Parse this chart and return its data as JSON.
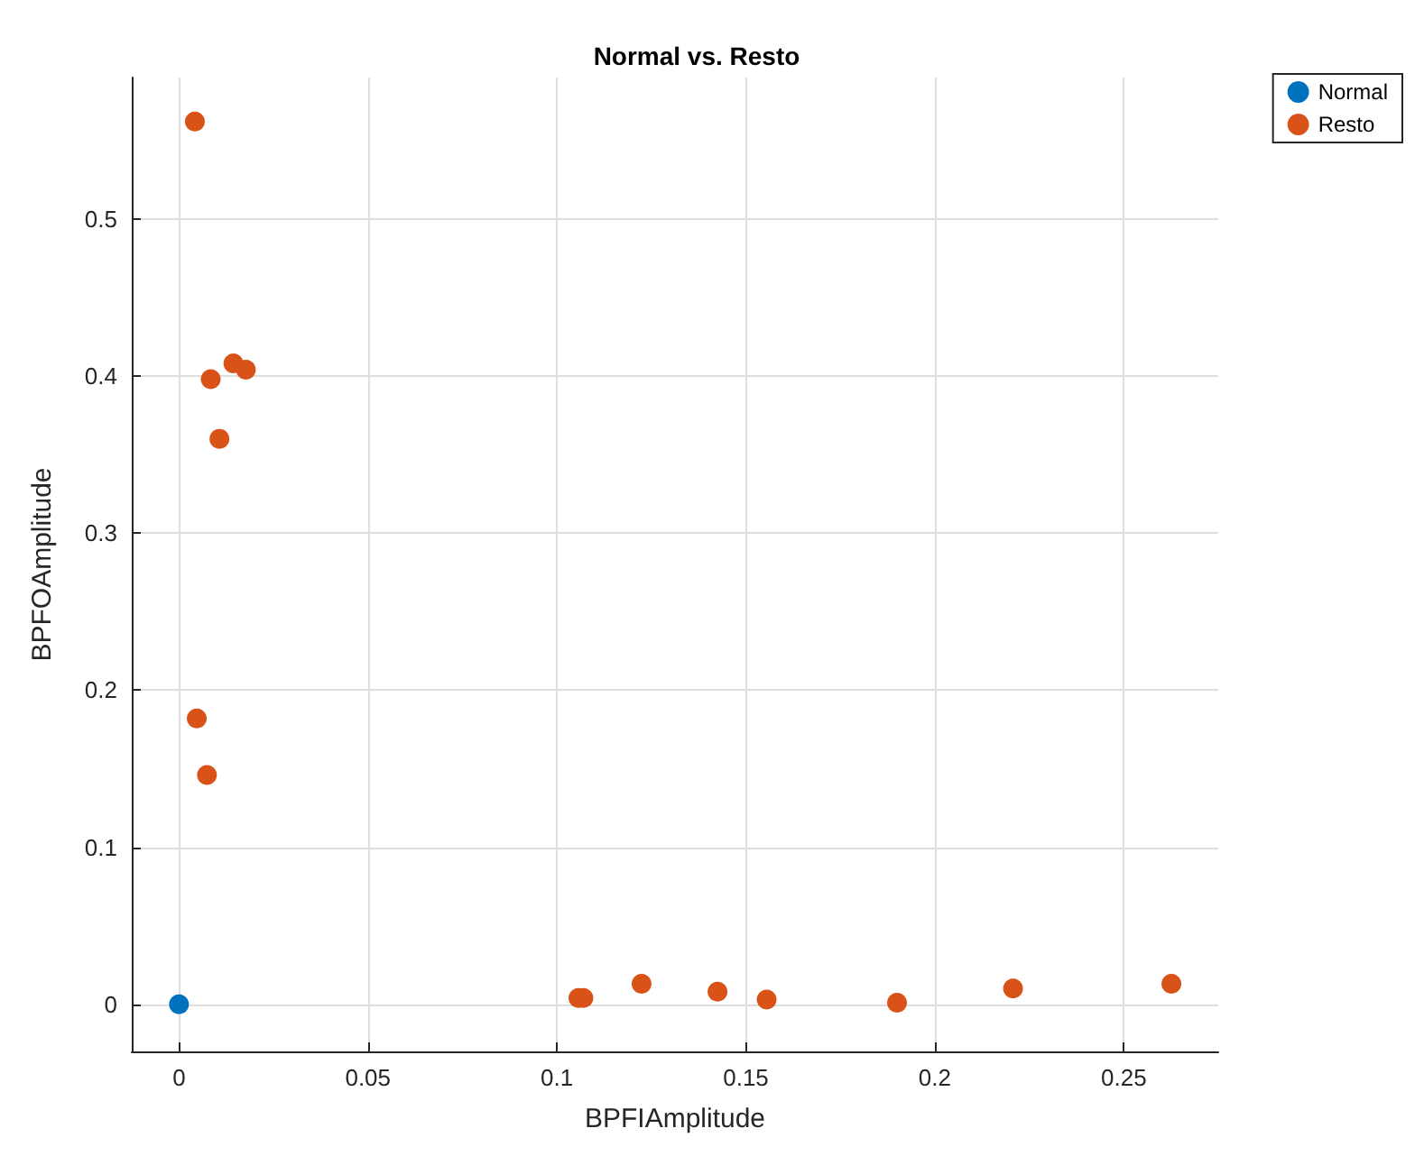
{
  "chart_data": {
    "type": "scatter",
    "title": "Normal vs. Resto",
    "xlabel": "BPFIAmplitude",
    "ylabel": "BPFOAmplitude",
    "xlim": [
      -0.0125,
      0.275
    ],
    "ylim": [
      -0.03,
      0.59
    ],
    "xticks": [
      0,
      0.05,
      0.1,
      0.15,
      0.2,
      0.25
    ],
    "yticks": [
      0,
      0.1,
      0.2,
      0.3,
      0.4,
      0.5
    ],
    "grid": true,
    "legend": "top right",
    "marker": "circle",
    "series": [
      {
        "name": "Normal",
        "color": "#0072bd",
        "x": [
          0
        ],
        "values": [
          0
        ]
      },
      {
        "name": "Resto",
        "color": "#d95319",
        "x": [
          0.0042,
          0.0144,
          0.0177,
          0.0084,
          0.0107,
          0.0047,
          0.0074,
          0.1057,
          0.107,
          0.1224,
          0.1425,
          0.1555,
          0.19,
          0.2207,
          0.2626
        ],
        "values": [
          0.562,
          0.408,
          0.404,
          0.398,
          0.36,
          0.182,
          0.146,
          0.004,
          0.004,
          0.013,
          0.008,
          0.003,
          0.001,
          0.01,
          0.013
        ]
      }
    ]
  }
}
